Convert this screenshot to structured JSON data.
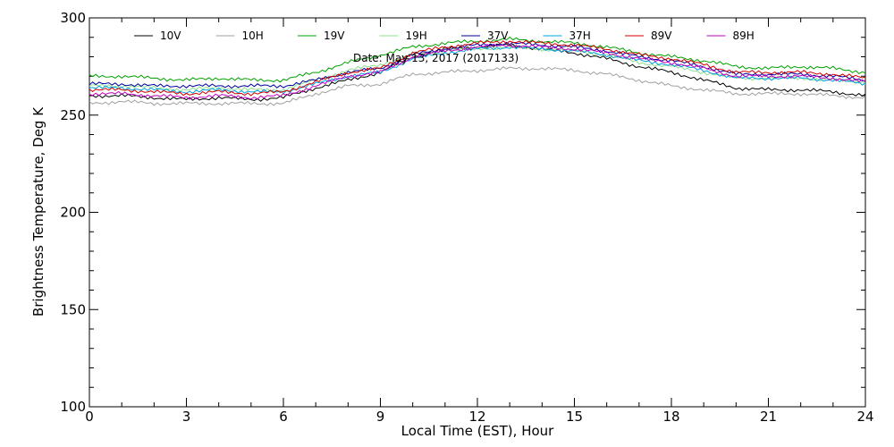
{
  "chart_data": {
    "type": "line",
    "title": "",
    "annotation": "Date: May 13, 2017 (2017133)",
    "xlabel": "Local Time (EST), Hour",
    "ylabel": "Brightness Temperature, Deg K",
    "xlim": [
      0,
      24
    ],
    "ylim": [
      100,
      300
    ],
    "xticks": [
      0,
      3,
      6,
      9,
      12,
      15,
      18,
      21,
      24
    ],
    "yticks": [
      100,
      150,
      200,
      250,
      300
    ],
    "x_minor_step": 1,
    "y_minor_step": 10,
    "grid": false,
    "legend_position": "top",
    "x": [
      0,
      1,
      2,
      3,
      4,
      5,
      6,
      7,
      8,
      9,
      10,
      11,
      12,
      13,
      14,
      15,
      16,
      17,
      18,
      19,
      20,
      21,
      22,
      23,
      24
    ],
    "series": [
      {
        "name": "10V",
        "color": "#000000",
        "values": [
          260,
          260,
          259,
          258,
          259,
          258,
          259,
          264,
          268,
          272,
          280,
          284,
          285,
          286,
          284,
          282,
          279,
          275,
          272,
          268,
          264,
          263,
          263,
          262,
          260
        ]
      },
      {
        "name": "10H",
        "color": "#a0a0a0",
        "values": [
          256,
          257,
          256,
          256,
          256,
          256,
          256,
          261,
          265,
          266,
          271,
          272,
          273,
          274,
          274,
          273,
          271,
          268,
          265,
          263,
          261,
          261,
          261,
          260,
          259
        ]
      },
      {
        "name": "19V",
        "color": "#00a000",
        "values": [
          270,
          270,
          269,
          268,
          269,
          268,
          268,
          272,
          277,
          281,
          285,
          287,
          288,
          289,
          288,
          287,
          285,
          282,
          280,
          278,
          275,
          274,
          275,
          274,
          272
        ]
      },
      {
        "name": "19H",
        "color": "#90e090",
        "values": [
          265,
          265,
          264,
          263,
          264,
          263,
          263,
          268,
          273,
          276,
          281,
          283,
          284,
          285,
          284,
          283,
          281,
          277,
          275,
          272,
          269,
          269,
          269,
          268,
          267
        ]
      },
      {
        "name": "37V",
        "color": "#0000a0",
        "values": [
          266,
          266,
          265,
          265,
          265,
          265,
          265,
          268,
          272,
          274,
          281,
          284,
          286,
          287,
          286,
          285,
          283,
          280,
          278,
          275,
          271,
          271,
          271,
          270,
          268
        ]
      },
      {
        "name": "37H",
        "color": "#00a0e0",
        "values": [
          264,
          264,
          263,
          262,
          263,
          262,
          262,
          266,
          270,
          272,
          279,
          282,
          284,
          285,
          284,
          283,
          281,
          278,
          276,
          273,
          269,
          269,
          269,
          268,
          266
        ]
      },
      {
        "name": "89V",
        "color": "#d00000",
        "values": [
          263,
          263,
          262,
          261,
          262,
          261,
          262,
          267,
          272,
          274,
          282,
          285,
          287,
          288,
          287,
          286,
          284,
          281,
          279,
          276,
          272,
          272,
          272,
          271,
          269
        ]
      },
      {
        "name": "89H",
        "color": "#c000c0",
        "values": [
          261,
          261,
          260,
          259,
          260,
          259,
          260,
          265,
          270,
          272,
          280,
          283,
          285,
          286,
          285,
          284,
          282,
          279,
          277,
          274,
          270,
          270,
          270,
          269,
          267
        ]
      }
    ]
  }
}
